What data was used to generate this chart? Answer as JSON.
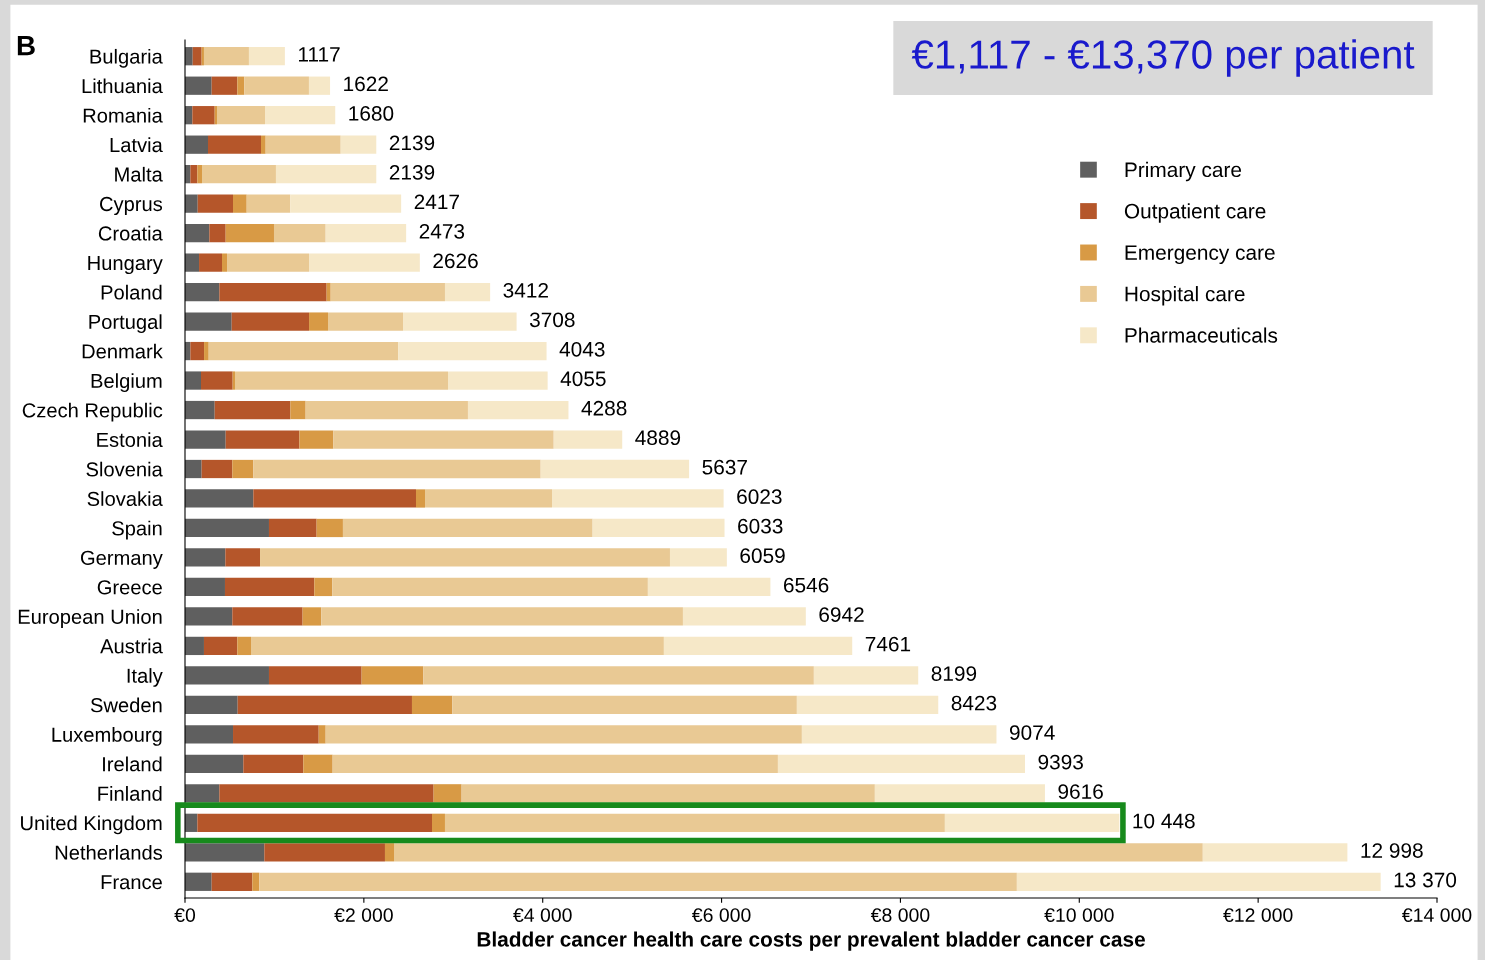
{
  "chart_data": {
    "type": "bar",
    "orientation": "horizontal",
    "stacked": true,
    "xlabel": "Bladder cancer health care costs per prevalent bladder cancer case",
    "annotations": [
      "B",
      "€1,117 - €13,370 per patient"
    ],
    "categories": [
      "Bulgaria",
      "Lithuania",
      "Romania",
      "Latvia",
      "Malta",
      "Cyprus",
      "Croatia",
      "Hungary",
      "Poland",
      "Portugal",
      "Denmark",
      "Belgium",
      "Czech Republic",
      "Estonia",
      "Slovenia",
      "Slovakia",
      "Spain",
      "Germany",
      "Greece",
      "European Union",
      "Austria",
      "Italy",
      "Sweden",
      "Luxembourg",
      "Ireland",
      "Finland",
      "United Kingdom",
      "Netherlands",
      "France"
    ],
    "series": [
      {
        "name": "Primary care",
        "color": "#5f5f5f",
        "values": [
          86,
          298,
          82,
          257,
          60,
          142,
          272,
          157,
          384,
          522,
          60,
          179,
          332,
          455,
          186,
          764,
          939,
          451,
          447,
          529,
          212,
          939,
          589,
          537,
          652,
          384,
          138,
          887,
          298
        ]
      },
      {
        "name": "Outpatient care",
        "color": "#b5562a",
        "values": [
          100,
          287,
          250,
          593,
          78,
          395,
          183,
          257,
          1200,
          865,
          153,
          354,
          846,
          824,
          343,
          1819,
          533,
          388,
          999,
          786,
          373,
          1036,
          1949,
          958,
          671,
          2396,
          2624,
          1349,
          455
        ]
      },
      {
        "name": "Emergency care",
        "color": "#d89a45",
        "values": [
          26,
          78,
          26,
          52,
          52,
          153,
          540,
          56,
          45,
          212,
          52,
          26,
          171,
          380,
          235,
          101,
          294,
          0,
          201,
          209,
          153,
          690,
          451,
          78,
          328,
          313,
          145,
          101,
          78
        ]
      },
      {
        "name": "Hospital care",
        "color": "#e9c994",
        "values": [
          503,
          723,
          537,
          839,
          827,
          488,
          578,
          917,
          1278,
          839,
          2121,
          2382,
          1815,
          2464,
          3213,
          1420,
          2792,
          4584,
          3529,
          4044,
          4617,
          4367,
          3853,
          5325,
          4979,
          4621,
          5590,
          9044,
          8471
        ]
      },
      {
        "name": "Pharmaceuticals",
        "color": "#f6e8c8",
        "values": [
          402,
          236,
          785,
          398,
          1122,
          1239,
          900,
          1239,
          505,
          1270,
          1657,
          1114,
          1124,
          766,
          1660,
          1919,
          1475,
          636,
          1370,
          1374,
          2106,
          1167,
          1581,
          2176,
          2763,
          1902,
          1951,
          1617,
          4068
        ]
      }
    ],
    "totals": [
      "1117",
      "1622",
      "1680",
      "2139",
      "2139",
      "2417",
      "2473",
      "2626",
      "3412",
      "3708",
      "4043",
      "4055",
      "4288",
      "4889",
      "5637",
      "6023",
      "6033",
      "6059",
      "6546",
      "6942",
      "7461",
      "8199",
      "8423",
      "9074",
      "9393",
      "9616",
      "10 448",
      "12 998",
      "13 370"
    ],
    "xlim": [
      0,
      14000
    ],
    "xticks": [
      {
        "value": 0,
        "label": "€0"
      },
      {
        "value": 2000,
        "label": "€2 000"
      },
      {
        "value": 4000,
        "label": "€4 000"
      },
      {
        "value": 6000,
        "label": "€6 000"
      },
      {
        "value": 8000,
        "label": "€8 000"
      },
      {
        "value": 10000,
        "label": "€10 000"
      },
      {
        "value": 12000,
        "label": "€12 000"
      },
      {
        "value": 14000,
        "label": "€14 000"
      }
    ],
    "legend": "top right",
    "grid": false
  }
}
